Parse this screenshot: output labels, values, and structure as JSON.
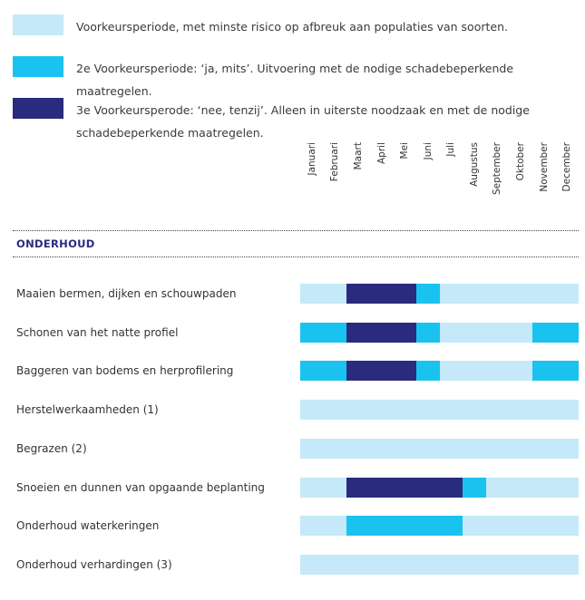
{
  "legend": [
    {
      "color": "#c5e9f8",
      "text": "Voorkeursperiode, met minste risico op afbreuk aan populaties van soorten."
    },
    {
      "color": "#1ac2ef",
      "text": "2e Voorkeursperiode: ‘ja, mits’. Uitvoering met de nodige schadebeperkende maatregelen."
    },
    {
      "color": "#2a2a7e",
      "text": "3e Voorkeursperode: ‘nee, tenzij’. Alleen in uiterste noodzaak en met de nodige schadebeperkende maatregelen."
    }
  ],
  "colors": {
    "1": "#c5e9f8",
    "2": "#1ac2ef",
    "3": "#2a2a7e"
  },
  "chart_data": {
    "type": "heatmap",
    "section": "ONDERHOUD",
    "months": [
      "Januari",
      "Februari",
      "Maart",
      "April",
      "Mei",
      "Juni",
      "Juli",
      "Augustus",
      "September",
      "Oktober",
      "November",
      "December"
    ],
    "rows": [
      {
        "label": "Maaien bermen, dijken en schouwpaden",
        "values": [
          1,
          1,
          3,
          3,
          3,
          2,
          1,
          1,
          1,
          1,
          1,
          1
        ]
      },
      {
        "label": "Schonen van het natte profiel",
        "values": [
          2,
          2,
          3,
          3,
          3,
          2,
          1,
          1,
          1,
          1,
          2,
          2
        ]
      },
      {
        "label": "Baggeren van bodems en herprofilering",
        "values": [
          2,
          2,
          3,
          3,
          3,
          2,
          1,
          1,
          1,
          1,
          2,
          2
        ]
      },
      {
        "label": "Herstelwerkaamheden (1)",
        "values": [
          1,
          1,
          1,
          1,
          1,
          1,
          1,
          1,
          1,
          1,
          1,
          1
        ]
      },
      {
        "label": "Begrazen (2)",
        "values": [
          1,
          1,
          1,
          1,
          1,
          1,
          1,
          1,
          1,
          1,
          1,
          1
        ]
      },
      {
        "label": "Snoeien en dunnen van opgaande beplanting",
        "values": [
          1,
          1,
          3,
          3,
          3,
          3,
          3,
          2,
          1,
          1,
          1,
          1
        ]
      },
      {
        "label": "Onderhoud waterkeringen",
        "values": [
          1,
          1,
          2,
          2,
          2,
          2,
          2,
          1,
          1,
          1,
          1,
          1
        ]
      },
      {
        "label": "Onderhoud verhardingen (3)",
        "values": [
          1,
          1,
          1,
          1,
          1,
          1,
          1,
          1,
          1,
          1,
          1,
          1
        ]
      }
    ]
  }
}
